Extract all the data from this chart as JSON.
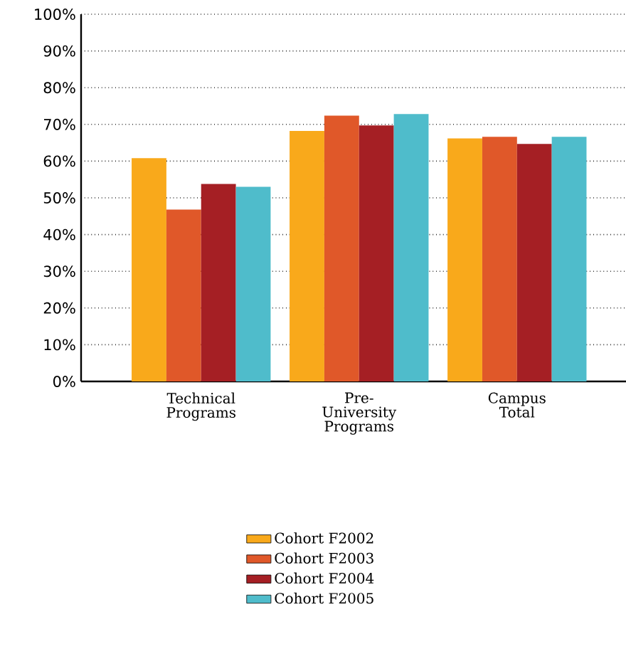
{
  "chart_data": {
    "type": "bar",
    "categories": [
      "Technical Programs",
      "Pre-University Programs",
      "Campus Total"
    ],
    "series": [
      {
        "name": "Cohort F2002",
        "color": "#f9a91b",
        "values": [
          60.8,
          68.2,
          66.2
        ]
      },
      {
        "name": "Cohort F2003",
        "color": "#e05829",
        "values": [
          46.8,
          72.4,
          66.6
        ]
      },
      {
        "name": "Cohort F2004",
        "color": "#a51f24",
        "values": [
          53.8,
          69.7,
          64.7
        ]
      },
      {
        "name": "Cohort F2005",
        "color": "#4fbccb",
        "values": [
          53.0,
          72.8,
          66.6
        ]
      }
    ],
    "ylim": [
      0,
      100
    ],
    "yticks": [
      {
        "value": 0,
        "label": "0%"
      },
      {
        "value": 10,
        "label": "10%"
      },
      {
        "value": 20,
        "label": "20%"
      },
      {
        "value": 30,
        "label": "30%"
      },
      {
        "value": 40,
        "label": "40%"
      },
      {
        "value": 50,
        "label": "50%"
      },
      {
        "value": 60,
        "label": "60%"
      },
      {
        "value": 70,
        "label": "70%"
      },
      {
        "value": 80,
        "label": "80%"
      },
      {
        "value": 90,
        "label": "90%"
      },
      {
        "value": 100,
        "label": "100%"
      }
    ],
    "grid": "y",
    "legend": "bottom"
  }
}
